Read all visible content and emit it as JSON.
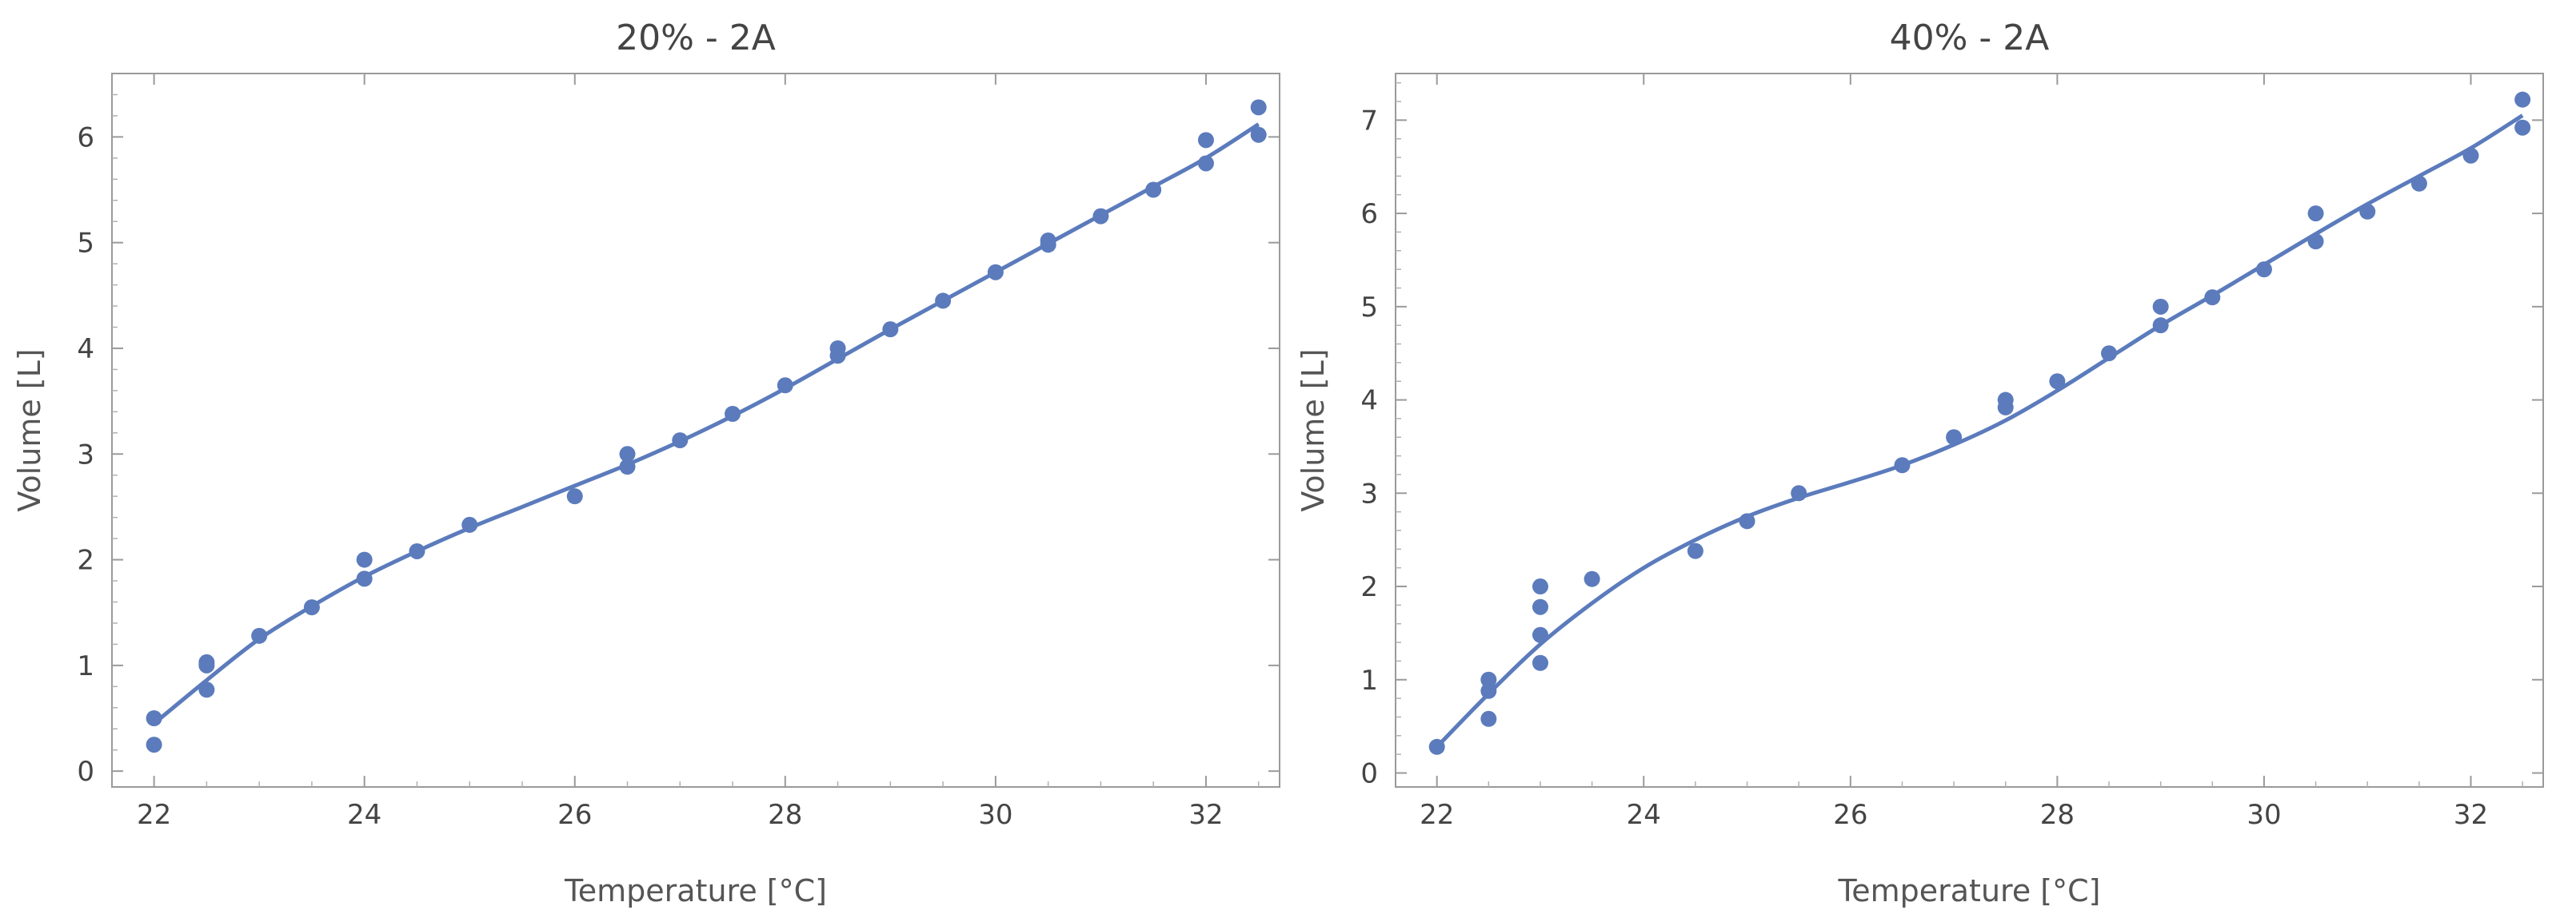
{
  "chart_data": [
    {
      "type": "scatter",
      "title": "20% - 2A",
      "xlabel": "Temperature [°C]",
      "ylabel": "Volume  [L]",
      "xlim": [
        21.6,
        32.7
      ],
      "ylim": [
        -0.15,
        6.6
      ],
      "xticks": [
        22,
        24,
        26,
        28,
        30,
        32
      ],
      "yticks": [
        0,
        1,
        2,
        3,
        4,
        5,
        6
      ],
      "xtick_labels": [
        "22",
        "24",
        "26",
        "28",
        "30",
        "32"
      ],
      "ytick_labels": [
        "0",
        "1",
        "2",
        "3",
        "4",
        "5",
        "6"
      ],
      "grid": false,
      "colors": {
        "marker": "#5b7bbc",
        "line": "#5b7bbc"
      },
      "points": [
        {
          "x": 22.0,
          "y": 0.25
        },
        {
          "x": 22.0,
          "y": 0.5
        },
        {
          "x": 22.5,
          "y": 0.77
        },
        {
          "x": 22.5,
          "y": 1.0
        },
        {
          "x": 22.5,
          "y": 1.03
        },
        {
          "x": 23.0,
          "y": 1.28
        },
        {
          "x": 23.5,
          "y": 1.55
        },
        {
          "x": 24.0,
          "y": 1.82
        },
        {
          "x": 24.0,
          "y": 2.0
        },
        {
          "x": 24.5,
          "y": 2.08
        },
        {
          "x": 25.0,
          "y": 2.33
        },
        {
          "x": 26.0,
          "y": 2.6
        },
        {
          "x": 26.5,
          "y": 2.88
        },
        {
          "x": 26.5,
          "y": 3.0
        },
        {
          "x": 27.0,
          "y": 3.13
        },
        {
          "x": 27.5,
          "y": 3.38
        },
        {
          "x": 28.0,
          "y": 3.65
        },
        {
          "x": 28.5,
          "y": 3.93
        },
        {
          "x": 28.5,
          "y": 4.0
        },
        {
          "x": 29.0,
          "y": 4.18
        },
        {
          "x": 29.5,
          "y": 4.45
        },
        {
          "x": 30.0,
          "y": 4.72
        },
        {
          "x": 30.5,
          "y": 4.98
        },
        {
          "x": 30.5,
          "y": 5.02
        },
        {
          "x": 31.0,
          "y": 5.25
        },
        {
          "x": 31.5,
          "y": 5.5
        },
        {
          "x": 32.0,
          "y": 5.75
        },
        {
          "x": 32.0,
          "y": 5.97
        },
        {
          "x": 32.5,
          "y": 6.02
        },
        {
          "x": 32.5,
          "y": 6.28
        }
      ],
      "fit": [
        {
          "x": 22.0,
          "y": 0.45
        },
        {
          "x": 22.5,
          "y": 0.86
        },
        {
          "x": 23.0,
          "y": 1.25
        },
        {
          "x": 23.5,
          "y": 1.56
        },
        {
          "x": 24.0,
          "y": 1.84
        },
        {
          "x": 24.5,
          "y": 2.08
        },
        {
          "x": 25.0,
          "y": 2.3
        },
        {
          "x": 25.5,
          "y": 2.5
        },
        {
          "x": 26.0,
          "y": 2.7
        },
        {
          "x": 26.5,
          "y": 2.9
        },
        {
          "x": 27.0,
          "y": 3.12
        },
        {
          "x": 27.5,
          "y": 3.36
        },
        {
          "x": 28.0,
          "y": 3.62
        },
        {
          "x": 28.5,
          "y": 3.9
        },
        {
          "x": 29.0,
          "y": 4.18
        },
        {
          "x": 29.5,
          "y": 4.45
        },
        {
          "x": 30.0,
          "y": 4.72
        },
        {
          "x": 30.5,
          "y": 4.99
        },
        {
          "x": 31.0,
          "y": 5.26
        },
        {
          "x": 31.5,
          "y": 5.53
        },
        {
          "x": 32.0,
          "y": 5.8
        },
        {
          "x": 32.5,
          "y": 6.12
        }
      ]
    },
    {
      "type": "scatter",
      "title": "40% - 2A",
      "xlabel": "Temperature [°C]",
      "ylabel": "Volume  [L]",
      "xlim": [
        21.6,
        32.7
      ],
      "ylim": [
        -0.15,
        7.5
      ],
      "xticks": [
        22,
        24,
        26,
        28,
        30,
        32
      ],
      "yticks": [
        0,
        1,
        2,
        3,
        4,
        5,
        6,
        7
      ],
      "xtick_labels": [
        "22",
        "24",
        "26",
        "28",
        "30",
        "32"
      ],
      "ytick_labels": [
        "0",
        "1",
        "2",
        "3",
        "4",
        "5",
        "6",
        "7"
      ],
      "grid": false,
      "colors": {
        "marker": "#5b7bbc",
        "line": "#5b7bbc"
      },
      "points": [
        {
          "x": 22.0,
          "y": 0.28
        },
        {
          "x": 22.5,
          "y": 0.58
        },
        {
          "x": 22.5,
          "y": 0.88
        },
        {
          "x": 22.5,
          "y": 1.0
        },
        {
          "x": 23.0,
          "y": 1.18
        },
        {
          "x": 23.0,
          "y": 1.48
        },
        {
          "x": 23.0,
          "y": 1.78
        },
        {
          "x": 23.0,
          "y": 2.0
        },
        {
          "x": 23.5,
          "y": 2.08
        },
        {
          "x": 24.5,
          "y": 2.38
        },
        {
          "x": 25.0,
          "y": 2.7
        },
        {
          "x": 25.5,
          "y": 3.0
        },
        {
          "x": 26.5,
          "y": 3.3
        },
        {
          "x": 27.0,
          "y": 3.6
        },
        {
          "x": 27.5,
          "y": 3.92
        },
        {
          "x": 27.5,
          "y": 4.0
        },
        {
          "x": 28.0,
          "y": 4.2
        },
        {
          "x": 28.5,
          "y": 4.5
        },
        {
          "x": 29.0,
          "y": 4.8
        },
        {
          "x": 29.0,
          "y": 5.0
        },
        {
          "x": 29.5,
          "y": 5.1
        },
        {
          "x": 30.0,
          "y": 5.4
        },
        {
          "x": 30.5,
          "y": 5.7
        },
        {
          "x": 30.5,
          "y": 6.0
        },
        {
          "x": 31.0,
          "y": 6.02
        },
        {
          "x": 31.5,
          "y": 6.32
        },
        {
          "x": 32.0,
          "y": 6.62
        },
        {
          "x": 32.5,
          "y": 6.92
        },
        {
          "x": 32.5,
          "y": 7.22
        }
      ],
      "fit": [
        {
          "x": 22.0,
          "y": 0.28
        },
        {
          "x": 22.5,
          "y": 0.85
        },
        {
          "x": 23.0,
          "y": 1.38
        },
        {
          "x": 23.5,
          "y": 1.82
        },
        {
          "x": 24.0,
          "y": 2.2
        },
        {
          "x": 24.5,
          "y": 2.5
        },
        {
          "x": 25.0,
          "y": 2.75
        },
        {
          "x": 25.5,
          "y": 2.95
        },
        {
          "x": 26.0,
          "y": 3.12
        },
        {
          "x": 26.5,
          "y": 3.3
        },
        {
          "x": 27.0,
          "y": 3.52
        },
        {
          "x": 27.5,
          "y": 3.78
        },
        {
          "x": 28.0,
          "y": 4.1
        },
        {
          "x": 28.5,
          "y": 4.45
        },
        {
          "x": 29.0,
          "y": 4.8
        },
        {
          "x": 29.5,
          "y": 5.12
        },
        {
          "x": 30.0,
          "y": 5.45
        },
        {
          "x": 30.5,
          "y": 5.78
        },
        {
          "x": 31.0,
          "y": 6.1
        },
        {
          "x": 31.5,
          "y": 6.4
        },
        {
          "x": 32.0,
          "y": 6.7
        },
        {
          "x": 32.5,
          "y": 7.05
        }
      ]
    }
  ]
}
